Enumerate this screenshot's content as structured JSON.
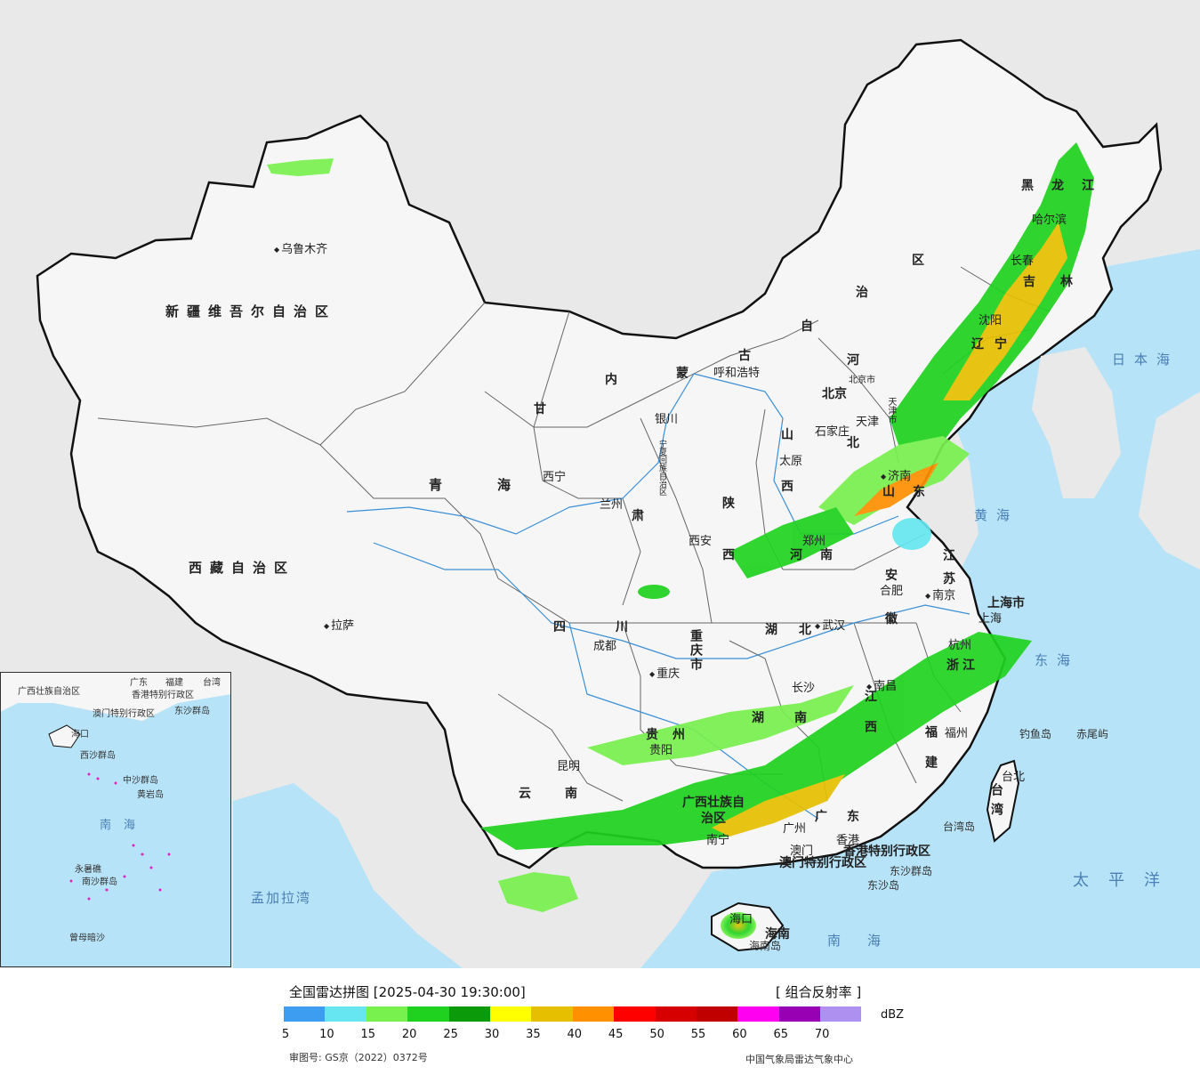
{
  "legend": {
    "title": "全国雷达拼图 [2025-04-30 19:30:00]",
    "product": "[ 组合反射率 ]",
    "unit": "dBZ",
    "ticks": [
      "5",
      "10",
      "15",
      "20",
      "25",
      "30",
      "35",
      "40",
      "45",
      "50",
      "55",
      "60",
      "65",
      "70"
    ],
    "colors": [
      "#3d9df0",
      "#66e6f0",
      "#78f04e",
      "#1fd21f",
      "#0a9a0a",
      "#ffff00",
      "#e6c000",
      "#ff9000",
      "#ff0000",
      "#d60000",
      "#c00000",
      "#ff00f0",
      "#9800b4",
      "#ad90f0"
    ],
    "approval": "审图号: GS京（2022）0372号",
    "org": "中国气象局雷达气象中心"
  },
  "regions": {
    "xinjiang": "新疆维吾尔自治区",
    "xizang": "西藏自治区",
    "qinghai": "青海",
    "gansu": "甘肃",
    "neimenggu": "内蒙古自治区",
    "heilongjiang": "黑龙江",
    "jilin": "吉林",
    "liaoning": "辽宁",
    "hebei": "河北",
    "shanxi": "山西",
    "shaanxi": "陕西",
    "henan": "河南",
    "shandong": "山东",
    "jiangsu": "江苏",
    "anhui": "安徽",
    "hubei": "湖北",
    "sichuan": "四川",
    "chongqing": "重庆市",
    "guizhou": "贵州",
    "yunnan": "云南",
    "hunan": "湖南",
    "jiangxi": "江西",
    "zhejiang": "浙江",
    "fujian": "福建",
    "guangdong": "广东",
    "guangxi": "广西壮族自治区",
    "hainan": "海南",
    "taiwan": "台湾",
    "ningxia": "宁夏回族自治区",
    "shanghai": "上海市",
    "beijing_mun": "北京市",
    "tianjin_mun": "天津市",
    "hk": "香港特别行政区",
    "macau": "澳门特别行政区"
  },
  "cities": {
    "urumqi": "乌鲁木齐",
    "lhasa": "拉萨",
    "xining": "西宁",
    "lanzhou": "兰州",
    "yinchuan": "银川",
    "hohhot": "呼和浩特",
    "beijing": "北京",
    "tianjin": "天津",
    "shijiazhuang": "石家庄",
    "taiyuan": "太原",
    "jinan": "济南",
    "zhengzhou": "郑州",
    "xian": "西安",
    "hefei": "合肥",
    "nanjing": "南京",
    "shanghai": "上海",
    "hangzhou": "杭州",
    "wuhan": "武汉",
    "chengdu": "成都",
    "chongqing": "重庆",
    "guiyang": "贵阳",
    "kunming": "昆明",
    "changsha": "长沙",
    "nanchang": "南昌",
    "fuzhou": "福州",
    "taibei": "台北",
    "guangzhou": "广州",
    "hongkong": "香港",
    "macao": "澳门",
    "nanning": "南宁",
    "haikou": "海口",
    "harbin": "哈尔滨",
    "changchun": "长春",
    "shenyang": "沈阳"
  },
  "seas": {
    "japan": "日本海",
    "yellow": "黄海",
    "east": "东海",
    "pacific": "太平洋",
    "south": "南海",
    "bengal": "孟加拉湾"
  },
  "islands": {
    "diaoyu": "钓鱼岛",
    "chiwei": "赤尾屿",
    "taiwan_isl": "台湾岛",
    "dongsha_qd": "东沙群岛",
    "dongsha": "东沙岛",
    "hainan_isl": "海南岛"
  },
  "inset": {
    "sea": "南海",
    "xisha": "西沙群岛",
    "zhongsha": "中沙群岛",
    "huangyan": "黄岩岛",
    "nansha": "南沙群岛",
    "yongshu": "永暑礁",
    "zengmu": "曾母暗沙",
    "hk": "香港特别行政区",
    "macau": "澳门特别行政区",
    "taiwan": "台湾",
    "dongsha": "东沙群岛",
    "fujian": "福建",
    "guangdong": "广东",
    "haikou": "海口",
    "guangxi": "广西壮族自治区"
  }
}
